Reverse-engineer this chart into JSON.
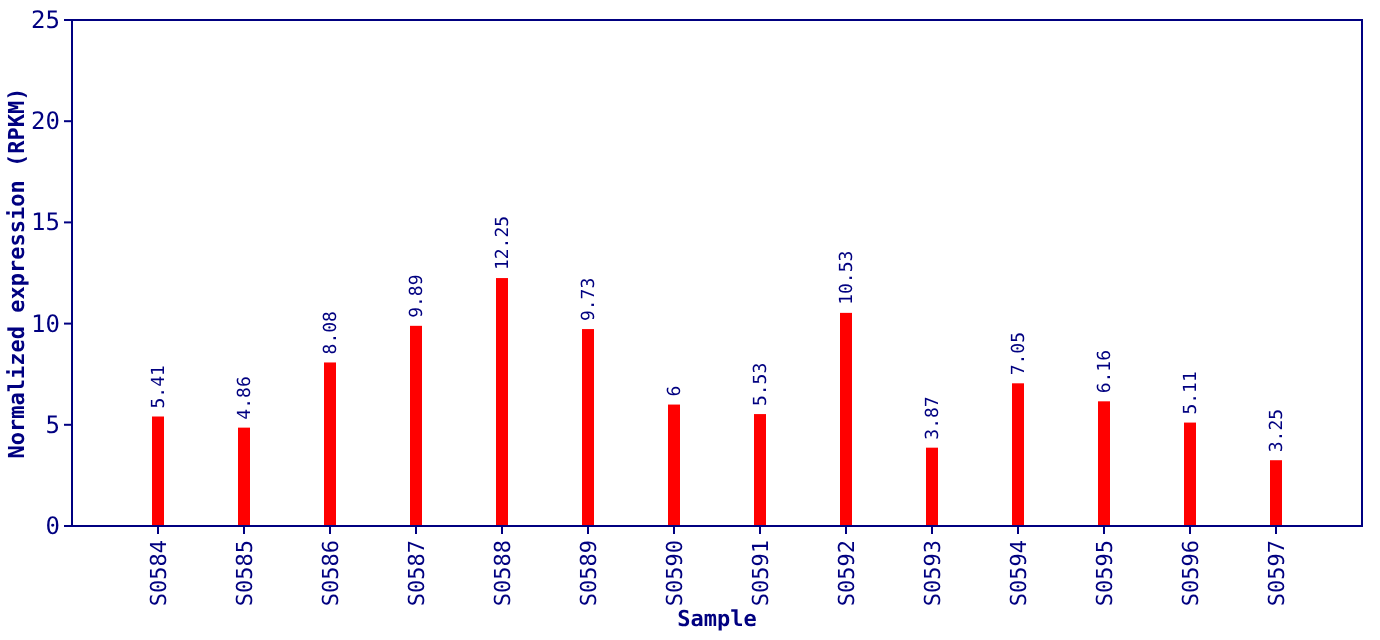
{
  "chart_data": {
    "type": "bar",
    "xlabel": "Sample",
    "ylabel": "Normalized expression (RPKM)",
    "categories": [
      "S0584",
      "S0585",
      "S0586",
      "S0587",
      "S0588",
      "S0589",
      "S0590",
      "S0591",
      "S0592",
      "S0593",
      "S0594",
      "S0595",
      "S0596",
      "S0597"
    ],
    "values": [
      5.41,
      4.86,
      8.08,
      9.89,
      12.25,
      9.73,
      6,
      5.53,
      10.53,
      3.87,
      7.05,
      6.16,
      5.11,
      3.25
    ],
    "color": "#ff0000",
    "data_labels": true,
    "ylim": [
      0,
      25
    ],
    "yticks": [
      0,
      5,
      10,
      15,
      20,
      25
    ],
    "grid": false
  }
}
